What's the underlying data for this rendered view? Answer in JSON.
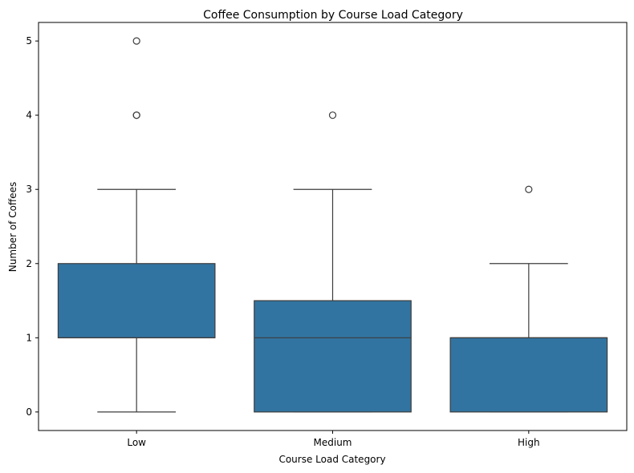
{
  "chart_data": {
    "type": "box",
    "title": "Coffee Consumption by Course Load Category",
    "xlabel": "Course Load Category",
    "ylabel": "Number of Coffees",
    "categories": [
      "Low",
      "Medium",
      "High"
    ],
    "ylim": [
      -0.25,
      5.25
    ],
    "yticks": [
      0,
      1,
      2,
      3,
      4,
      5
    ],
    "grid": false,
    "box_color": "#3274a1",
    "edge_color": "#3d3d3d",
    "boxes": [
      {
        "category": "Low",
        "whisker_low": 0,
        "q1": 1,
        "median": 1,
        "q3": 2,
        "whisker_high": 3,
        "outliers": [
          4,
          4,
          5
        ]
      },
      {
        "category": "Medium",
        "whisker_low": 0,
        "q1": 0,
        "median": 1,
        "q3": 1.5,
        "whisker_high": 3,
        "outliers": [
          4
        ]
      },
      {
        "category": "High",
        "whisker_low": 0,
        "q1": 0,
        "median": 1,
        "q3": 1,
        "whisker_high": 2,
        "outliers": [
          3
        ]
      }
    ]
  }
}
